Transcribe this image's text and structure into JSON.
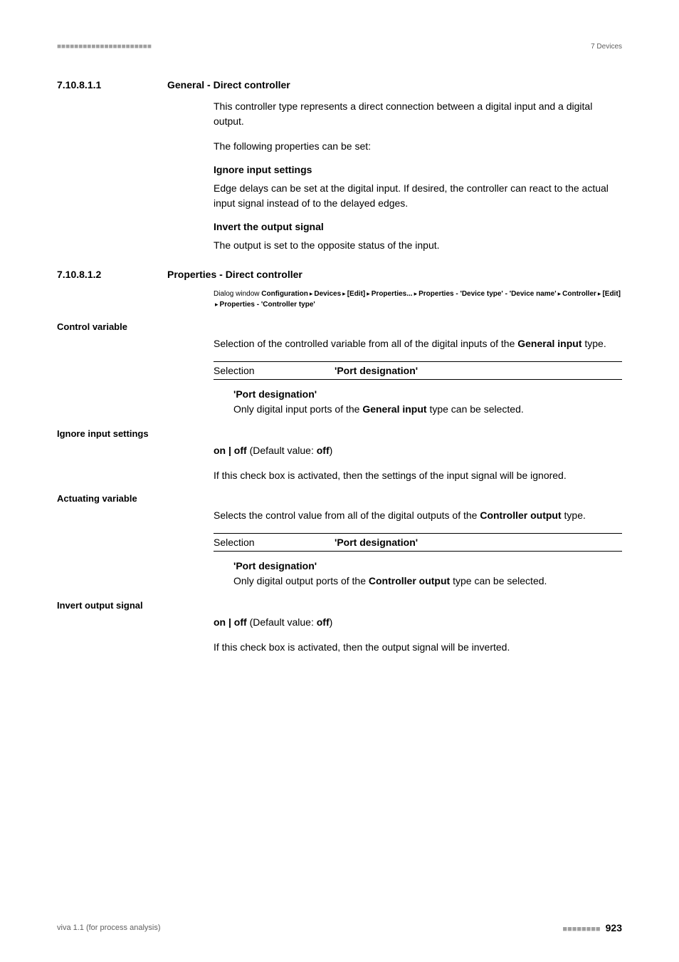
{
  "header": {
    "dashes": "■■■■■■■■■■■■■■■■■■■■■■",
    "right": "7 Devices"
  },
  "section1": {
    "number": "7.10.8.1.1",
    "title": "General - Direct controller",
    "para1": "This controller type represents a direct connection between a digital input and a digital output.",
    "para2": "The following properties can be set:",
    "sub1_title": "Ignore input settings",
    "sub1_text": "Edge delays can be set at the digital input. If desired, the controller can react to the actual input signal instead of to the delayed edges.",
    "sub2_title": "Invert the output signal",
    "sub2_text": "The output is set to the opposite status of the input."
  },
  "section2": {
    "number": "7.10.8.1.2",
    "title": "Properties - Direct controller",
    "breadcrumb_pre": "Dialog window ",
    "bc1": "Configuration",
    "bc2": "Devices",
    "bc3": "[Edit]",
    "bc4": "Properties...",
    "bc5": "Properties - 'Device type' - 'Device name'",
    "bc6": "Controller",
    "bc7": "[Edit]",
    "bc8": "Properties - 'Controller type'"
  },
  "control_variable": {
    "label": "Control variable",
    "text_pre": "Selection of the controlled variable from all of the digital inputs of the ",
    "text_bold": "General input",
    "text_post": " type.",
    "selection_label": "Selection",
    "selection_value": "'Port designation'",
    "port_title": "'Port designation'",
    "port_text_pre": "Only digital input ports of the ",
    "port_text_bold": "General input",
    "port_text_post": " type can be selected."
  },
  "ignore_input": {
    "label": "Ignore input settings",
    "onoff_pre": "on | off",
    "onoff_mid": " (Default value: ",
    "onoff_bold": "off",
    "onoff_post": ")",
    "text": "If this check box is activated, then the settings of the input signal will be ignored."
  },
  "actuating": {
    "label": "Actuating variable",
    "text_pre": "Selects the control value from all of the digital outputs of the ",
    "text_bold": "Controller output",
    "text_post": " type.",
    "selection_label": "Selection",
    "selection_value": "'Port designation'",
    "port_title": "'Port designation'",
    "port_text_pre": "Only digital output ports of the ",
    "port_text_bold": "Controller output",
    "port_text_post": " type can be selected."
  },
  "invert_output": {
    "label": "Invert output signal",
    "onoff_pre": "on | off",
    "onoff_mid": " (Default value: ",
    "onoff_bold": "off",
    "onoff_post": ")",
    "text": "If this check box is activated, then the output signal will be inverted."
  },
  "footer": {
    "left": "viva 1.1 (for process analysis)",
    "dashes": "■■■■■■■■",
    "page": "923"
  }
}
